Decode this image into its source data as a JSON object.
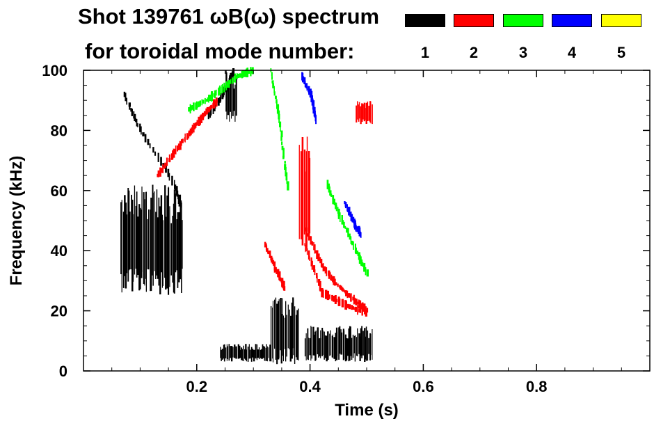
{
  "title_line1": "Shot 139761 ωB(ω) spectrum",
  "title_line2": "for toroidal mode number:",
  "legend": [
    {
      "label": "1",
      "color": "#000000"
    },
    {
      "label": "2",
      "color": "#ff0000"
    },
    {
      "label": "3",
      "color": "#00ff00"
    },
    {
      "label": "4",
      "color": "#0000ff"
    },
    {
      "label": "5",
      "color": "#ffff00"
    }
  ],
  "chart_data": {
    "type": "heatmap",
    "title": "Shot 139761 ωB(ω) spectrum for toroidal mode number:",
    "xlabel": "Time (s)",
    "ylabel": "Frequency (kHz)",
    "xlim": [
      0.0,
      1.0
    ],
    "ylim": [
      0,
      100
    ],
    "x_ticks": [
      0.2,
      0.4,
      0.6,
      0.8
    ],
    "x_tick_labels": [
      "0.2",
      "0.4",
      "0.6",
      "0.8"
    ],
    "y_ticks": [
      0,
      20,
      40,
      60,
      80,
      100
    ],
    "y_tick_labels": [
      "0",
      "20",
      "40",
      "60",
      "80",
      "100"
    ],
    "grid": false,
    "legend_position": "top-right",
    "series": [
      {
        "name": "1",
        "color": "#000000",
        "regions": [
          {
            "t": [
              0.065,
              0.175
            ],
            "f": [
              25,
              62
            ]
          },
          {
            "t": [
              0.24,
              0.33
            ],
            "f": [
              3,
              9
            ]
          },
          {
            "t": [
              0.33,
              0.38
            ],
            "f": [
              2,
              25
            ]
          },
          {
            "t": [
              0.39,
              0.51
            ],
            "f": [
              3,
              15
            ]
          },
          {
            "t": [
              0.25,
              0.27
            ],
            "f": [
              82,
              100
            ]
          }
        ],
        "traces": [
          {
            "t": [
              0.07,
              0.1,
              0.16,
              0.17
            ],
            "f": [
              92,
              80,
              62,
              55
            ]
          },
          {
            "t": [
              0.22,
              0.245,
              0.265
            ],
            "f": [
              85,
              92,
              100
            ]
          }
        ]
      },
      {
        "name": "2",
        "color": "#ff0000",
        "regions": [
          {
            "t": [
              0.38,
              0.4
            ],
            "f": [
              38,
              78
            ]
          },
          {
            "t": [
              0.48,
              0.51
            ],
            "f": [
              82,
              90
            ]
          }
        ],
        "traces": [
          {
            "t": [
              0.13,
              0.16,
              0.19,
              0.215,
              0.235
            ],
            "f": [
              65,
              73,
              80,
              86,
              90
            ]
          },
          {
            "t": [
              0.39,
              0.42,
              0.45,
              0.48,
              0.5
            ],
            "f": [
              48,
              35,
              28,
              23,
              20
            ]
          },
          {
            "t": [
              0.39,
              0.42,
              0.46,
              0.5
            ],
            "f": [
              42,
              26,
              22,
              19
            ]
          },
          {
            "t": [
              0.32,
              0.34,
              0.355
            ],
            "f": [
              42,
              33,
              27
            ]
          }
        ]
      },
      {
        "name": "3",
        "color": "#00ff00",
        "traces": [
          {
            "t": [
              0.185,
              0.215,
              0.245,
              0.27,
              0.3
            ],
            "f": [
              87,
              90,
              94,
              98,
              100
            ]
          },
          {
            "t": [
              0.43,
              0.45,
              0.48,
              0.5
            ],
            "f": [
              62,
              52,
              40,
              32
            ]
          },
          {
            "t": [
              0.33,
              0.345,
              0.36
            ],
            "f": [
              100,
              82,
              60
            ]
          }
        ]
      },
      {
        "name": "4",
        "color": "#0000ff",
        "traces": [
          {
            "t": [
              0.385,
              0.4,
              0.41
            ],
            "f": [
              98,
              92,
              83
            ]
          },
          {
            "t": [
              0.46,
              0.48,
              0.49
            ],
            "f": [
              56,
              48,
              45
            ]
          }
        ]
      },
      {
        "name": "5",
        "color": "#ffff00",
        "traces": []
      }
    ]
  }
}
